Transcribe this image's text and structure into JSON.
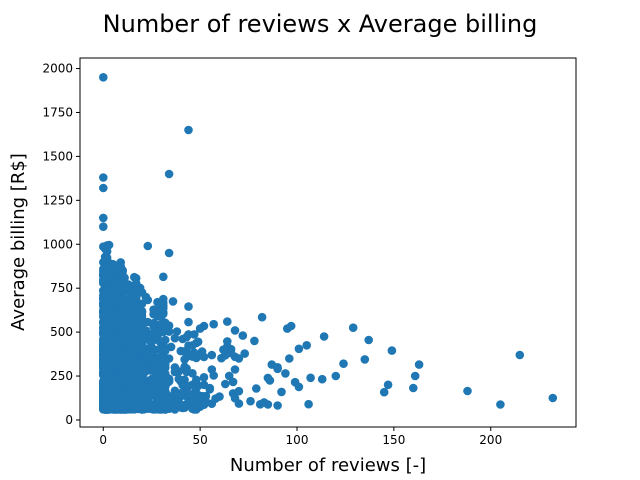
{
  "chart_data": {
    "type": "scatter",
    "title": "Number of reviews x Average billing",
    "xlabel": "Number of reviews [-]",
    "ylabel": "Average billing [R$]",
    "xlim": [
      -12,
      244
    ],
    "ylim": [
      -40,
      2060
    ],
    "xticks": [
      0,
      50,
      100,
      150,
      200
    ],
    "yticks": [
      0,
      250,
      500,
      750,
      1000,
      1250,
      1500,
      1750,
      2000
    ],
    "grid": false,
    "legend": "none",
    "marker_color": "#1f77b4",
    "outliers": [
      [
        0,
        1950
      ],
      [
        44,
        1650
      ],
      [
        34,
        1400
      ],
      [
        0,
        1380
      ],
      [
        0,
        1320
      ],
      [
        0,
        1150
      ],
      [
        0,
        1100
      ],
      [
        23,
        990
      ],
      [
        34,
        950
      ],
      [
        31,
        815
      ],
      [
        44,
        645
      ],
      [
        36,
        675
      ],
      [
        82,
        585
      ],
      [
        129,
        525
      ],
      [
        97,
        535
      ],
      [
        95,
        520
      ],
      [
        114,
        475
      ],
      [
        137,
        455
      ],
      [
        105,
        425
      ],
      [
        101,
        405
      ],
      [
        135,
        345
      ],
      [
        124,
        320
      ],
      [
        163,
        315
      ],
      [
        215,
        370
      ],
      [
        149,
        395
      ],
      [
        147,
        200
      ],
      [
        145,
        158
      ],
      [
        160,
        182
      ],
      [
        161,
        250
      ],
      [
        188,
        165
      ],
      [
        205,
        88
      ],
      [
        232,
        125
      ],
      [
        106,
        90
      ],
      [
        113,
        232
      ],
      [
        107,
        240
      ],
      [
        99,
        215
      ],
      [
        92,
        160
      ],
      [
        83,
        100
      ],
      [
        90,
        300
      ],
      [
        94,
        265
      ],
      [
        120,
        250
      ],
      [
        101,
        188
      ],
      [
        96,
        350
      ],
      [
        87,
        315
      ],
      [
        78,
        450
      ],
      [
        72,
        480
      ],
      [
        68,
        510
      ],
      [
        64,
        560
      ],
      [
        57,
        545
      ],
      [
        52,
        535
      ],
      [
        50,
        520
      ],
      [
        62,
        400
      ],
      [
        70,
        350
      ]
    ],
    "cluster": [
      {
        "x_max": 3,
        "y_min": 60,
        "y_max": 1000,
        "points": 150
      },
      {
        "x_max": 10,
        "y_min": 60,
        "y_max": 900,
        "points": 500
      },
      {
        "x_max": 20,
        "y_min": 60,
        "y_max": 820,
        "points": 420
      },
      {
        "x_max": 32,
        "y_min": 60,
        "y_max": 700,
        "points": 300
      },
      {
        "x_max": 50,
        "y_min": 60,
        "y_max": 560,
        "points": 200
      },
      {
        "x_max": 70,
        "y_min": 70,
        "y_max": 470,
        "points": 110
      },
      {
        "x_max": 90,
        "y_min": 80,
        "y_max": 380,
        "points": 45
      }
    ]
  }
}
